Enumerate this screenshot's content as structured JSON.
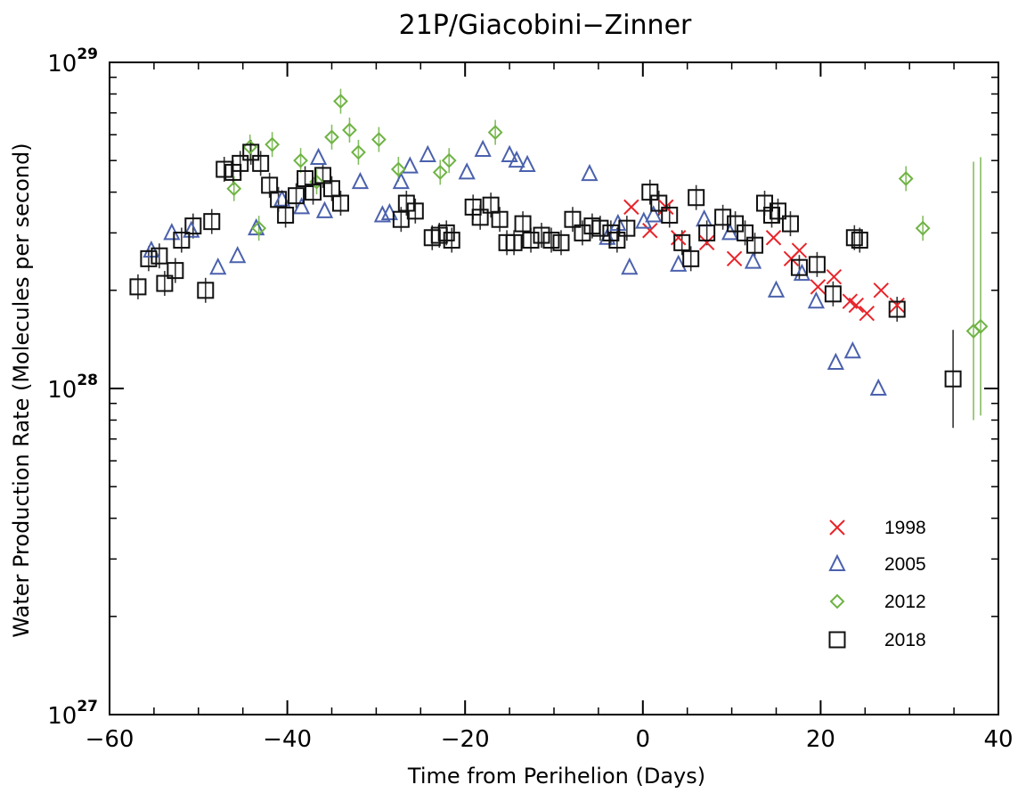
{
  "chart_data": {
    "type": "scatter",
    "title": "21P/Giacobini−Zinner",
    "xlabel": "Time from Perihelion (Days)",
    "ylabel": "Water Production Rate (Molecules per second)",
    "xlim": [
      -60,
      40
    ],
    "ylim": [
      1e+27,
      1e+29
    ],
    "yscale": "log",
    "x_ticks": [
      -60,
      -40,
      -20,
      0,
      20,
      40
    ],
    "x_tick_labels": [
      "−60",
      "−40",
      "−20",
      "0",
      "20",
      "40"
    ],
    "y_ticks": [
      1e+27,
      1e+28,
      1e+29
    ],
    "y_tick_labels": [
      {
        "base": "10",
        "exp": "27"
      },
      {
        "base": "10",
        "exp": "28"
      },
      {
        "base": "10",
        "exp": "29"
      }
    ],
    "grid": false,
    "legend_position": "bottom-right",
    "series": [
      {
        "name": "1998",
        "marker": "x",
        "color": "#e8242a",
        "points": [
          [
            -1.3,
            3.6e+28
          ],
          [
            0.8,
            3.05e+28
          ],
          [
            2.6,
            3.6e+28
          ],
          [
            4.0,
            2.9e+28
          ],
          [
            7.2,
            2.8e+28
          ],
          [
            10.3,
            2.5e+28
          ],
          [
            14.7,
            2.9e+28
          ],
          [
            16.7,
            2.5e+28
          ],
          [
            17.6,
            2.65e+28
          ],
          [
            19.7,
            2.05e+28
          ],
          [
            21.5,
            2.2e+28
          ],
          [
            23.3,
            1.85e+28
          ],
          [
            24.0,
            1.8e+28
          ],
          [
            25.2,
            1.7e+28
          ],
          [
            26.8,
            2e+28
          ],
          [
            28.6,
            1.8e+28
          ]
        ]
      },
      {
        "name": "2005",
        "marker": "triangle",
        "color": "#4b61ad",
        "points": [
          [
            -55.3,
            2.65e+28
          ],
          [
            -53.0,
            3e+28
          ],
          [
            -50.8,
            3.05e+28
          ],
          [
            -47.8,
            2.35e+28
          ],
          [
            -45.6,
            2.55e+28
          ],
          [
            -43.5,
            3.1e+28
          ],
          [
            -40.6,
            3.8e+28
          ],
          [
            -38.4,
            3.6e+28
          ],
          [
            -36.5,
            5.1e+28
          ],
          [
            -35.8,
            3.5e+28
          ],
          [
            -31.8,
            4.3e+28
          ],
          [
            -29.3,
            3.4e+28
          ],
          [
            -28.5,
            3.45e+28
          ],
          [
            -27.2,
            4.3e+28
          ],
          [
            -26.2,
            4.8e+28
          ],
          [
            -24.2,
            5.2e+28
          ],
          [
            -19.8,
            4.6e+28
          ],
          [
            -18.0,
            5.4e+28
          ],
          [
            -15.0,
            5.2e+28
          ],
          [
            -14.2,
            5e+28
          ],
          [
            -13.0,
            4.85e+28
          ],
          [
            -6.0,
            4.55e+28
          ],
          [
            -4.0,
            2.9e+28
          ],
          [
            -2.8,
            3.2e+28
          ],
          [
            -1.5,
            2.35e+28
          ],
          [
            0.1,
            3.25e+28
          ],
          [
            1.2,
            3.4e+28
          ],
          [
            4.0,
            2.4e+28
          ],
          [
            6.9,
            3.3e+28
          ],
          [
            9.8,
            3e+28
          ],
          [
            12.4,
            2.45e+28
          ],
          [
            15.0,
            2e+28
          ],
          [
            17.9,
            2.25e+28
          ],
          [
            19.5,
            1.85e+28
          ],
          [
            21.7,
            1.2e+28
          ],
          [
            23.6,
            1.3e+28
          ],
          [
            26.5,
            1e+28
          ]
        ]
      },
      {
        "name": "2012",
        "marker": "diamond",
        "color": "#6fb344",
        "points": [
          [
            -46.0,
            4.1e+28
          ],
          [
            -44.2,
            5.5e+28
          ],
          [
            -43.2,
            3.1e+28
          ],
          [
            -41.7,
            5.6e+28
          ],
          [
            -38.5,
            5e+28
          ],
          [
            -36.7,
            4.3e+28
          ],
          [
            -35.0,
            5.9e+28
          ],
          [
            -34.0,
            7.6e+28
          ],
          [
            -33.0,
            6.2e+28
          ],
          [
            -32.0,
            5.3e+28
          ],
          [
            -29.7,
            5.8e+28
          ],
          [
            -27.5,
            4.7e+28
          ],
          [
            -22.8,
            4.6e+28
          ],
          [
            -21.8,
            5e+28
          ],
          [
            -16.6,
            6.1e+28
          ],
          [
            29.6,
            4.4e+28
          ],
          [
            31.5,
            3.1e+28
          ],
          [
            37.2,
            1.5e+28
          ],
          [
            38.0,
            1.55e+28
          ]
        ]
      },
      {
        "name": "2018",
        "marker": "square",
        "color": "#111111",
        "points": [
          [
            -56.8,
            2.05e+28
          ],
          [
            -55.6,
            2.5e+28
          ],
          [
            -54.4,
            2.55e+28
          ],
          [
            -53.8,
            2.1e+28
          ],
          [
            -52.6,
            2.3e+28
          ],
          [
            -51.9,
            2.85e+28
          ],
          [
            -50.6,
            3.15e+28
          ],
          [
            -49.2,
            2e+28
          ],
          [
            -48.5,
            3.25e+28
          ],
          [
            -47.1,
            4.7e+28
          ],
          [
            -46.1,
            4.6e+28
          ],
          [
            -45.3,
            4.9e+28
          ],
          [
            -44.1,
            5.3e+28
          ],
          [
            -43.0,
            4.9e+28
          ],
          [
            -42.0,
            4.2e+28
          ],
          [
            -41.0,
            3.8e+28
          ],
          [
            -40.2,
            3.4e+28
          ],
          [
            -39.0,
            3.9e+28
          ],
          [
            -38.0,
            4.4e+28
          ],
          [
            -37.1,
            4e+28
          ],
          [
            -36.0,
            4.5e+28
          ],
          [
            -35.0,
            4.1e+28
          ],
          [
            -34.0,
            3.7e+28
          ],
          [
            -27.2,
            3.3e+28
          ],
          [
            -26.6,
            3.7e+28
          ],
          [
            -25.6,
            3.5e+28
          ],
          [
            -23.7,
            2.9e+28
          ],
          [
            -22.9,
            2.95e+28
          ],
          [
            -22.1,
            3e+28
          ],
          [
            -21.5,
            2.85e+28
          ],
          [
            -19.1,
            3.6e+28
          ],
          [
            -18.3,
            3.35e+28
          ],
          [
            -17.1,
            3.65e+28
          ],
          [
            -16.1,
            3.3e+28
          ],
          [
            -15.3,
            2.8e+28
          ],
          [
            -14.5,
            2.8e+28
          ],
          [
            -13.5,
            3.2e+28
          ],
          [
            -12.6,
            2.85e+28
          ],
          [
            -11.4,
            2.95e+28
          ],
          [
            -10.3,
            2.85e+28
          ],
          [
            -9.2,
            2.8e+28
          ],
          [
            -7.9,
            3.3e+28
          ],
          [
            -6.8,
            3e+28
          ],
          [
            -5.7,
            3.15e+28
          ],
          [
            -4.8,
            3.1e+28
          ],
          [
            -3.6,
            3e+28
          ],
          [
            -2.9,
            2.85e+28
          ],
          [
            -1.8,
            3.1e+28
          ],
          [
            0.8,
            4e+28
          ],
          [
            1.8,
            3.7e+28
          ],
          [
            3.0,
            3.4e+28
          ],
          [
            4.4,
            2.8e+28
          ],
          [
            5.4,
            2.5e+28
          ],
          [
            6.0,
            3.85e+28
          ],
          [
            7.2,
            3e+28
          ],
          [
            9.0,
            3.35e+28
          ],
          [
            10.4,
            3.2e+28
          ],
          [
            11.5,
            3e+28
          ],
          [
            12.6,
            2.75e+28
          ],
          [
            13.7,
            3.7e+28
          ],
          [
            14.5,
            3.4e+28
          ],
          [
            15.2,
            3.5e+28
          ],
          [
            16.6,
            3.2e+28
          ],
          [
            17.6,
            2.35e+28
          ],
          [
            19.6,
            2.4e+28
          ],
          [
            21.4,
            1.95e+28
          ],
          [
            23.8,
            2.9e+28
          ],
          [
            24.4,
            2.85e+28
          ],
          [
            28.6,
            1.75e+28
          ],
          [
            34.9,
            1.07e+28
          ]
        ]
      }
    ]
  }
}
